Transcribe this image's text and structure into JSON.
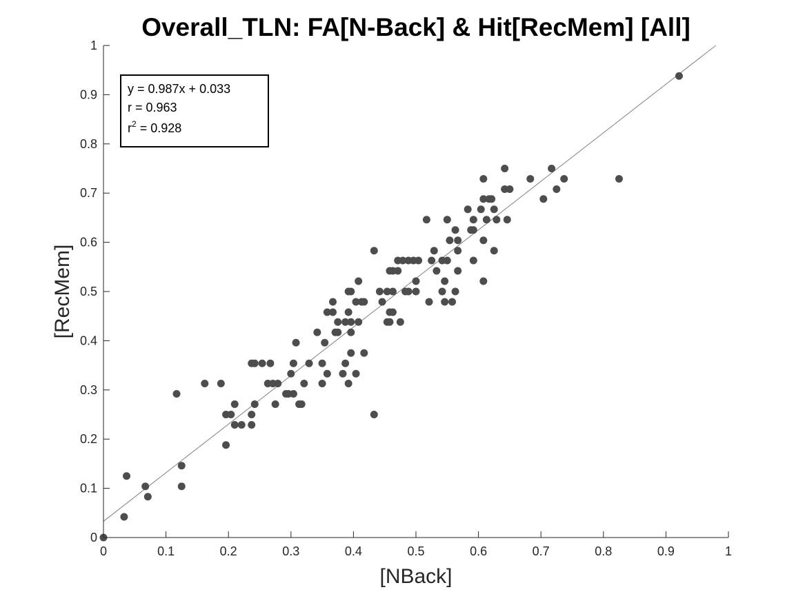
{
  "chart_data": {
    "type": "scatter",
    "title": "Overall_TLN: FA[N-Back] & Hit[RecMem] [All]",
    "xlabel": "[NBack]",
    "ylabel": "[RecMem]",
    "xlim": [
      0,
      1
    ],
    "ylim": [
      0,
      1
    ],
    "xticks": [
      "0",
      "0.1",
      "0.2",
      "0.3",
      "0.4",
      "0.5",
      "0.6",
      "0.7",
      "0.8",
      "0.9",
      "1"
    ],
    "yticks": [
      "0",
      "0.1",
      "0.2",
      "0.3",
      "0.4",
      "0.5",
      "0.6",
      "0.7",
      "0.8",
      "0.9",
      "1"
    ],
    "grid": false,
    "fit_line": {
      "slope": 0.987,
      "intercept": 0.033
    },
    "stats": {
      "equation": "y = 0.987x + 0.033",
      "r": "r = 0.963",
      "r2_prefix": "r",
      "r2_exp": "2",
      "r2_value": " = 0.928"
    },
    "colors": {
      "points": "#4d4d4d",
      "fit_line": "#808080",
      "axis": "#262626"
    },
    "points": [
      [
        0,
        0
      ],
      [
        0.033,
        0.042
      ],
      [
        0.037,
        0.125
      ],
      [
        0.067,
        0.104
      ],
      [
        0.071,
        0.083
      ],
      [
        0.117,
        0.292
      ],
      [
        0.125,
        0.146
      ],
      [
        0.125,
        0.104
      ],
      [
        0.162,
        0.313
      ],
      [
        0.188,
        0.313
      ],
      [
        0.196,
        0.188
      ],
      [
        0.196,
        0.25
      ],
      [
        0.204,
        0.25
      ],
      [
        0.21,
        0.229
      ],
      [
        0.21,
        0.271
      ],
      [
        0.221,
        0.229
      ],
      [
        0.237,
        0.25
      ],
      [
        0.237,
        0.229
      ],
      [
        0.237,
        0.354
      ],
      [
        0.242,
        0.354
      ],
      [
        0.242,
        0.271
      ],
      [
        0.254,
        0.354
      ],
      [
        0.263,
        0.313
      ],
      [
        0.267,
        0.354
      ],
      [
        0.271,
        0.313
      ],
      [
        0.275,
        0.271
      ],
      [
        0.279,
        0.313
      ],
      [
        0.292,
        0.292
      ],
      [
        0.296,
        0.292
      ],
      [
        0.3,
        0.333
      ],
      [
        0.304,
        0.292
      ],
      [
        0.304,
        0.354
      ],
      [
        0.308,
        0.396
      ],
      [
        0.313,
        0.271
      ],
      [
        0.317,
        0.271
      ],
      [
        0.321,
        0.313
      ],
      [
        0.329,
        0.354
      ],
      [
        0.342,
        0.417
      ],
      [
        0.35,
        0.313
      ],
      [
        0.35,
        0.354
      ],
      [
        0.354,
        0.396
      ],
      [
        0.358,
        0.458
      ],
      [
        0.358,
        0.333
      ],
      [
        0.367,
        0.458
      ],
      [
        0.367,
        0.479
      ],
      [
        0.371,
        0.417
      ],
      [
        0.375,
        0.438
      ],
      [
        0.375,
        0.417
      ],
      [
        0.383,
        0.333
      ],
      [
        0.387,
        0.354
      ],
      [
        0.387,
        0.438
      ],
      [
        0.392,
        0.5
      ],
      [
        0.392,
        0.458
      ],
      [
        0.392,
        0.313
      ],
      [
        0.396,
        0.375
      ],
      [
        0.396,
        0.5
      ],
      [
        0.396,
        0.417
      ],
      [
        0.396,
        0.438
      ],
      [
        0.404,
        0.333
      ],
      [
        0.404,
        0.479
      ],
      [
        0.408,
        0.521
      ],
      [
        0.408,
        0.438
      ],
      [
        0.413,
        0.479
      ],
      [
        0.417,
        0.375
      ],
      [
        0.417,
        0.479
      ],
      [
        0.433,
        0.583
      ],
      [
        0.433,
        0.25
      ],
      [
        0.442,
        0.5
      ],
      [
        0.446,
        0.479
      ],
      [
        0.454,
        0.5
      ],
      [
        0.454,
        0.438
      ],
      [
        0.458,
        0.542
      ],
      [
        0.458,
        0.458
      ],
      [
        0.458,
        0.438
      ],
      [
        0.463,
        0.542
      ],
      [
        0.463,
        0.458
      ],
      [
        0.463,
        0.5
      ],
      [
        0.471,
        0.542
      ],
      [
        0.471,
        0.563
      ],
      [
        0.475,
        0.438
      ],
      [
        0.479,
        0.563
      ],
      [
        0.483,
        0.5
      ],
      [
        0.488,
        0.563
      ],
      [
        0.488,
        0.5
      ],
      [
        0.496,
        0.563
      ],
      [
        0.5,
        0.521
      ],
      [
        0.5,
        0.5
      ],
      [
        0.504,
        0.563
      ],
      [
        0.517,
        0.646
      ],
      [
        0.521,
        0.479
      ],
      [
        0.525,
        0.563
      ],
      [
        0.529,
        0.583
      ],
      [
        0.533,
        0.542
      ],
      [
        0.542,
        0.563
      ],
      [
        0.542,
        0.5
      ],
      [
        0.546,
        0.521
      ],
      [
        0.546,
        0.479
      ],
      [
        0.55,
        0.563
      ],
      [
        0.55,
        0.646
      ],
      [
        0.554,
        0.604
      ],
      [
        0.558,
        0.479
      ],
      [
        0.563,
        0.625
      ],
      [
        0.563,
        0.5
      ],
      [
        0.567,
        0.583
      ],
      [
        0.567,
        0.604
      ],
      [
        0.567,
        0.542
      ],
      [
        0.583,
        0.667
      ],
      [
        0.588,
        0.625
      ],
      [
        0.592,
        0.563
      ],
      [
        0.592,
        0.646
      ],
      [
        0.592,
        0.625
      ],
      [
        0.604,
        0.667
      ],
      [
        0.608,
        0.521
      ],
      [
        0.608,
        0.604
      ],
      [
        0.608,
        0.729
      ],
      [
        0.608,
        0.688
      ],
      [
        0.613,
        0.646
      ],
      [
        0.617,
        0.688
      ],
      [
        0.621,
        0.688
      ],
      [
        0.625,
        0.667
      ],
      [
        0.625,
        0.583
      ],
      [
        0.629,
        0.646
      ],
      [
        0.642,
        0.708
      ],
      [
        0.642,
        0.75
      ],
      [
        0.646,
        0.646
      ],
      [
        0.65,
        0.708
      ],
      [
        0.683,
        0.729
      ],
      [
        0.704,
        0.688
      ],
      [
        0.717,
        0.75
      ],
      [
        0.725,
        0.708
      ],
      [
        0.737,
        0.729
      ],
      [
        0.825,
        0.729
      ],
      [
        0.921,
        0.938
      ]
    ]
  }
}
